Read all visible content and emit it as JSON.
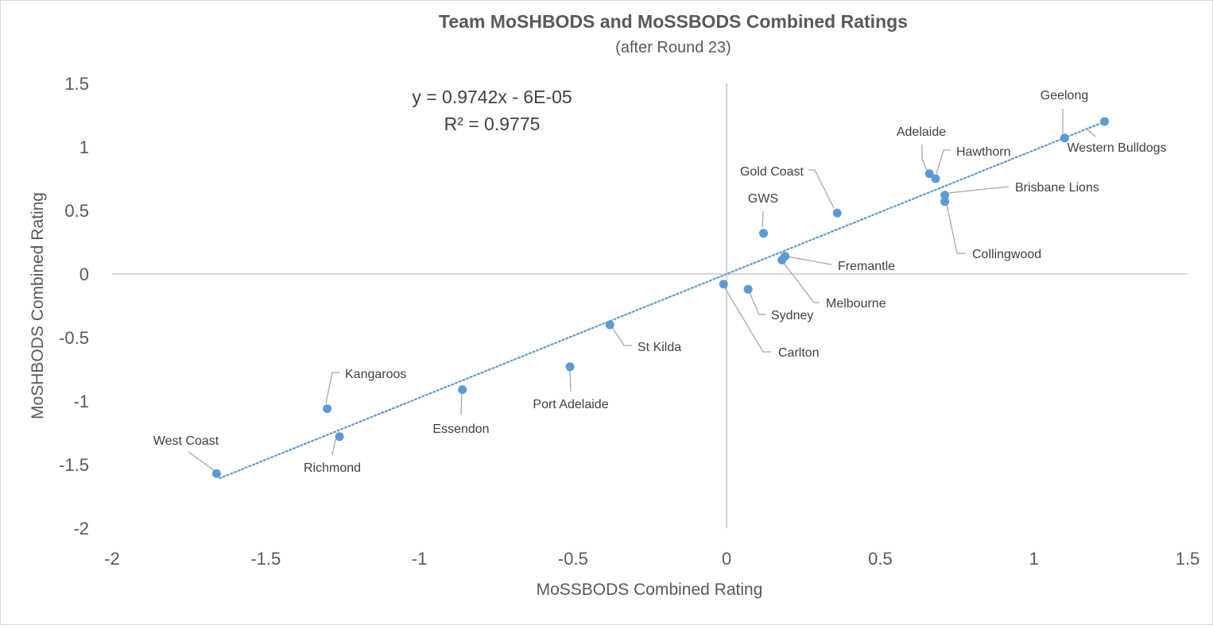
{
  "chart_data": {
    "type": "scatter",
    "title": "Team MoSHBODS and MoSSBODS Combined Ratings",
    "subtitle": "(after Round 23)",
    "xlabel": "MoSSBODS Combined Rating",
    "ylabel": "MoSHBODS Combined Rating",
    "xlim": [
      -2,
      1.5
    ],
    "ylim": [
      -2,
      1.5
    ],
    "xticks": [
      "-2",
      "-1.5",
      "-1",
      "-0.5",
      "0",
      "0.5",
      "1",
      "1.5"
    ],
    "yticks": [
      "1.5",
      "1",
      "0.5",
      "0",
      "-0.5",
      "-1",
      "-1.5",
      "-2"
    ],
    "trendline": {
      "equation": "y = 0.9742x - 6E-05",
      "r_squared": "R² = 0.9775",
      "slope": 0.9742,
      "intercept": -6e-05,
      "x_range": [
        -1.65,
        1.23
      ]
    },
    "marker_color": "#5B9BD5",
    "points": [
      {
        "name": "Geelong",
        "x": 1.1,
        "y": 1.07
      },
      {
        "name": "Western Bulldogs",
        "x": 1.23,
        "y": 1.2
      },
      {
        "name": "Adelaide",
        "x": 0.66,
        "y": 0.79
      },
      {
        "name": "Hawthorn",
        "x": 0.68,
        "y": 0.75
      },
      {
        "name": "Brisbane Lions",
        "x": 0.71,
        "y": 0.62
      },
      {
        "name": "Collingwood",
        "x": 0.71,
        "y": 0.57
      },
      {
        "name": "Gold Coast",
        "x": 0.36,
        "y": 0.48
      },
      {
        "name": "GWS",
        "x": 0.12,
        "y": 0.32
      },
      {
        "name": "Fremantle",
        "x": 0.19,
        "y": 0.14
      },
      {
        "name": "Melbourne",
        "x": 0.18,
        "y": 0.11
      },
      {
        "name": "Sydney",
        "x": 0.07,
        "y": -0.12
      },
      {
        "name": "Carlton",
        "x": -0.01,
        "y": -0.08
      },
      {
        "name": "St Kilda",
        "x": -0.38,
        "y": -0.4
      },
      {
        "name": "Port Adelaide",
        "x": -0.51,
        "y": -0.73
      },
      {
        "name": "Essendon",
        "x": -0.86,
        "y": -0.91
      },
      {
        "name": "Kangaroos",
        "x": -1.3,
        "y": -1.06
      },
      {
        "name": "Richmond",
        "x": -1.26,
        "y": -1.28
      },
      {
        "name": "West Coast",
        "x": -1.66,
        "y": -1.57
      }
    ]
  }
}
